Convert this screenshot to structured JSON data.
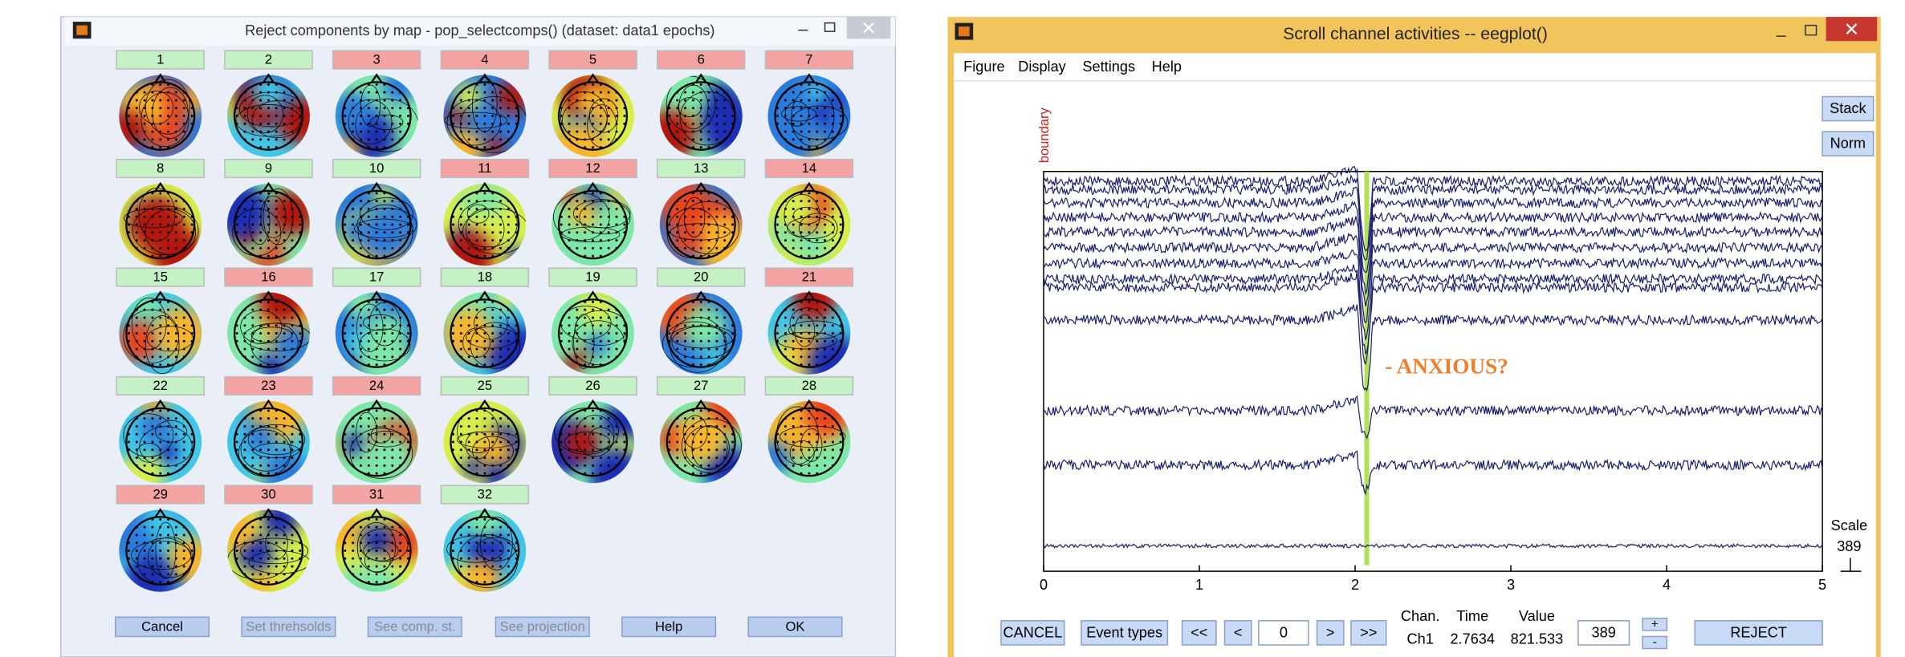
{
  "left_window": {
    "title": "Reject components by map - pop_selectcomps() (dataset: data1 epochs)",
    "components": [
      {
        "label": "1",
        "rejected": false
      },
      {
        "label": "2",
        "rejected": false
      },
      {
        "label": "3",
        "rejected": true
      },
      {
        "label": "4",
        "rejected": true
      },
      {
        "label": "5",
        "rejected": true
      },
      {
        "label": "6",
        "rejected": true
      },
      {
        "label": "7",
        "rejected": true
      },
      {
        "label": "8",
        "rejected": false
      },
      {
        "label": "9",
        "rejected": false
      },
      {
        "label": "10",
        "rejected": false
      },
      {
        "label": "11",
        "rejected": true
      },
      {
        "label": "12",
        "rejected": true
      },
      {
        "label": "13",
        "rejected": false
      },
      {
        "label": "14",
        "rejected": true
      },
      {
        "label": "15",
        "rejected": false
      },
      {
        "label": "16",
        "rejected": true
      },
      {
        "label": "17",
        "rejected": false
      },
      {
        "label": "18",
        "rejected": false
      },
      {
        "label": "19",
        "rejected": false
      },
      {
        "label": "20",
        "rejected": false
      },
      {
        "label": "21",
        "rejected": true
      },
      {
        "label": "22",
        "rejected": false
      },
      {
        "label": "23",
        "rejected": true
      },
      {
        "label": "24",
        "rejected": true
      },
      {
        "label": "25",
        "rejected": false
      },
      {
        "label": "26",
        "rejected": false
      },
      {
        "label": "27",
        "rejected": false
      },
      {
        "label": "28",
        "rejected": false
      },
      {
        "label": "29",
        "rejected": true
      },
      {
        "label": "30",
        "rejected": true
      },
      {
        "label": "31",
        "rejected": true
      },
      {
        "label": "32",
        "rejected": false
      }
    ],
    "buttons": [
      {
        "label": "Cancel",
        "enabled": true
      },
      {
        "label": "Set threhsolds",
        "enabled": false
      },
      {
        "label": "See comp. st.",
        "enabled": false
      },
      {
        "label": "See projection",
        "enabled": false
      },
      {
        "label": "Help",
        "enabled": true
      },
      {
        "label": "OK",
        "enabled": true
      }
    ]
  },
  "right_window": {
    "title": "Scroll channel activities -- eegplot()",
    "menu": [
      "Figure",
      "Display",
      "Settings",
      "Help"
    ],
    "side_buttons": [
      "Stack",
      "Norm"
    ],
    "event_label": "boundary",
    "annotation": "- ANXIOUS?",
    "xticks": [
      0,
      1,
      2,
      3,
      4,
      5
    ],
    "scale_label": "Scale",
    "scale_value": "389",
    "controls": {
      "cancel": "CANCEL",
      "event_types": "Event types",
      "first": "<<",
      "prev": "<",
      "position": "0",
      "next": ">",
      "last": ">>",
      "scale_input": "389",
      "plus": "+",
      "minus": "-",
      "reject": "REJECT"
    },
    "readout": {
      "headers": [
        "Chan.",
        "Time",
        "Value"
      ],
      "values": [
        "Ch1",
        "2.7634",
        "821.533"
      ]
    }
  }
}
